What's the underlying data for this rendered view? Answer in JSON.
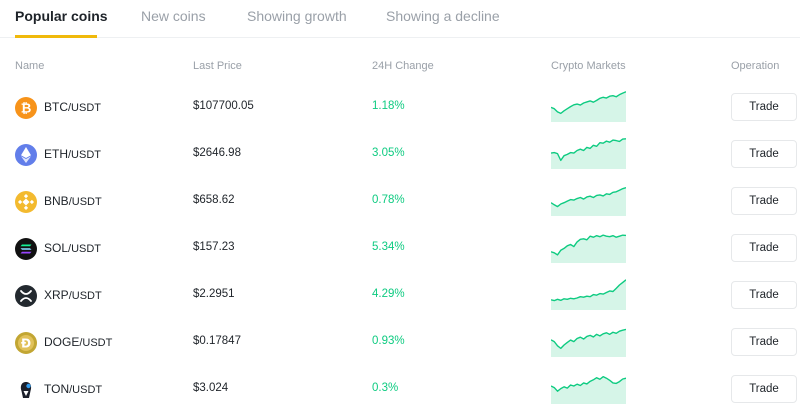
{
  "tabs": [
    {
      "label": "Popular coins",
      "active": true
    },
    {
      "label": "New coins",
      "active": false
    },
    {
      "label": "Showing growth",
      "active": false
    },
    {
      "label": "Showing a decline",
      "active": false
    }
  ],
  "columns": {
    "name": "Name",
    "last_price": "Last Price",
    "change": "24H Change",
    "markets": "Crypto Markets",
    "operation": "Operation"
  },
  "colors": {
    "accent": "#f0b90b",
    "positive": "#0ecb81",
    "spark_line": "#0ecb81",
    "spark_fill": "#d6f5e8"
  },
  "coins": [
    {
      "base": "BTC",
      "quote": "/USDT",
      "price": "$107700.05",
      "change": "1.18%",
      "icon": "bitcoin-icon",
      "action": "Trade",
      "trend": [
        0.35,
        0.3,
        0.18,
        0.12,
        0.22,
        0.3,
        0.38,
        0.45,
        0.48,
        0.44,
        0.52,
        0.56,
        0.6,
        0.55,
        0.62,
        0.7,
        0.74,
        0.71,
        0.78,
        0.8,
        0.76,
        0.84,
        0.9,
        0.95
      ]
    },
    {
      "base": "ETH",
      "quote": "/USDT",
      "price": "$2646.98",
      "change": "3.05%",
      "icon": "ethereum-icon",
      "action": "Trade",
      "trend": [
        0.4,
        0.42,
        0.38,
        0.12,
        0.3,
        0.35,
        0.42,
        0.4,
        0.5,
        0.55,
        0.5,
        0.62,
        0.58,
        0.7,
        0.66,
        0.8,
        0.78,
        0.86,
        0.82,
        0.9,
        0.88,
        0.85,
        0.94,
        0.95
      ]
    },
    {
      "base": "BNB",
      "quote": "/USDT",
      "price": "$658.62",
      "change": "0.78%",
      "icon": "bnb-icon",
      "action": "Trade",
      "trend": [
        0.3,
        0.22,
        0.15,
        0.25,
        0.3,
        0.36,
        0.42,
        0.4,
        0.46,
        0.5,
        0.44,
        0.52,
        0.55,
        0.5,
        0.58,
        0.6,
        0.56,
        0.64,
        0.62,
        0.7,
        0.72,
        0.78,
        0.84,
        0.88
      ]
    },
    {
      "base": "SOL",
      "quote": "/USDT",
      "price": "$157.23",
      "change": "5.34%",
      "icon": "solana-icon",
      "action": "Trade",
      "trend": [
        0.22,
        0.18,
        0.1,
        0.28,
        0.35,
        0.45,
        0.5,
        0.42,
        0.6,
        0.7,
        0.72,
        0.68,
        0.82,
        0.78,
        0.84,
        0.8,
        0.86,
        0.82,
        0.8,
        0.84,
        0.78,
        0.82,
        0.86,
        0.85
      ]
    },
    {
      "base": "XRP",
      "quote": "/USDT",
      "price": "$2.2951",
      "change": "4.29%",
      "icon": "xrp-icon",
      "action": "Trade",
      "trend": [
        0.18,
        0.15,
        0.2,
        0.16,
        0.22,
        0.2,
        0.24,
        0.22,
        0.25,
        0.3,
        0.28,
        0.32,
        0.3,
        0.38,
        0.36,
        0.42,
        0.4,
        0.46,
        0.52,
        0.5,
        0.62,
        0.75,
        0.85,
        0.95
      ]
    },
    {
      "base": "DOGE",
      "quote": "/USDT",
      "price": "$0.17847",
      "change": "0.93%",
      "icon": "dogecoin-icon",
      "action": "Trade",
      "trend": [
        0.45,
        0.38,
        0.22,
        0.12,
        0.25,
        0.35,
        0.44,
        0.38,
        0.5,
        0.55,
        0.48,
        0.58,
        0.62,
        0.56,
        0.66,
        0.6,
        0.68,
        0.72,
        0.66,
        0.74,
        0.7,
        0.78,
        0.82,
        0.85
      ]
    },
    {
      "base": "TON",
      "quote": "/USDT",
      "price": "$3.024",
      "change": "0.3%",
      "icon": "toncoin-icon",
      "action": "Trade",
      "trend": [
        0.48,
        0.42,
        0.28,
        0.38,
        0.45,
        0.4,
        0.52,
        0.48,
        0.55,
        0.5,
        0.6,
        0.56,
        0.66,
        0.72,
        0.8,
        0.74,
        0.84,
        0.78,
        0.7,
        0.6,
        0.58,
        0.65,
        0.75,
        0.78
      ]
    }
  ]
}
